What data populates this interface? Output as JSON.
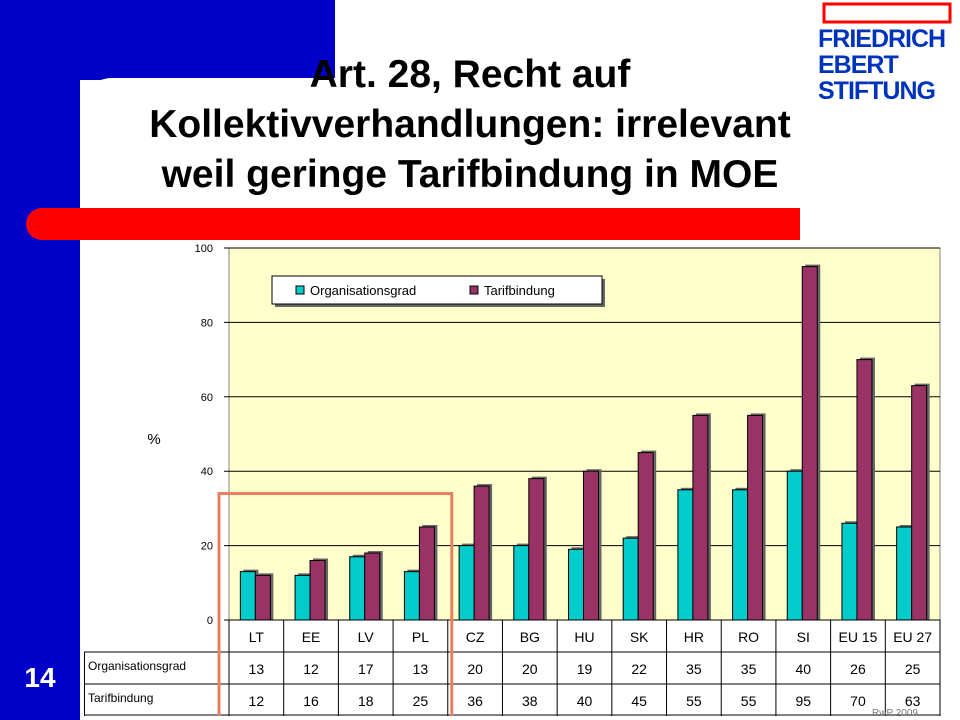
{
  "slide": {
    "title": "Art. 28, Recht auf Kollektivverhandlungen: irrelevant weil geringe Tarifbindung in MOE",
    "number": "14",
    "footer": "RwP 2009"
  },
  "logo": {
    "lines": [
      "FRIEDRICH",
      "EBERT",
      "STIFTUNG"
    ],
    "color": "#0033bb",
    "accent": "#ff0000"
  },
  "colors": {
    "background_blue": "#0000c8",
    "red_bar": "#ff0000",
    "plot_bg": "#ffffcc",
    "series1": "#00cccc",
    "series2": "#993366",
    "highlight_box": "#e88060"
  },
  "chart_data": {
    "type": "bar",
    "categories": [
      "LT",
      "EE",
      "LV",
      "PL",
      "CZ",
      "BG",
      "HU",
      "SK",
      "HR",
      "RO",
      "SI",
      "EU 15",
      "EU 27"
    ],
    "series": [
      {
        "name": "Organisationsgrad",
        "values": [
          13,
          12,
          17,
          13,
          20,
          20,
          19,
          22,
          35,
          35,
          40,
          26,
          25
        ],
        "color": "#00cccc"
      },
      {
        "name": "Tarifbindung",
        "values": [
          12,
          16,
          18,
          25,
          36,
          38,
          40,
          45,
          55,
          55,
          95,
          70,
          63
        ],
        "color": "#993366"
      }
    ],
    "ylabel": "%",
    "ylim": [
      0,
      100
    ],
    "yticks": [
      0,
      20,
      40,
      60,
      80,
      100
    ],
    "grid": true,
    "legend": "top",
    "data_table": true,
    "highlight": {
      "categories": [
        "LT",
        "EE",
        "LV",
        "PL"
      ]
    }
  }
}
